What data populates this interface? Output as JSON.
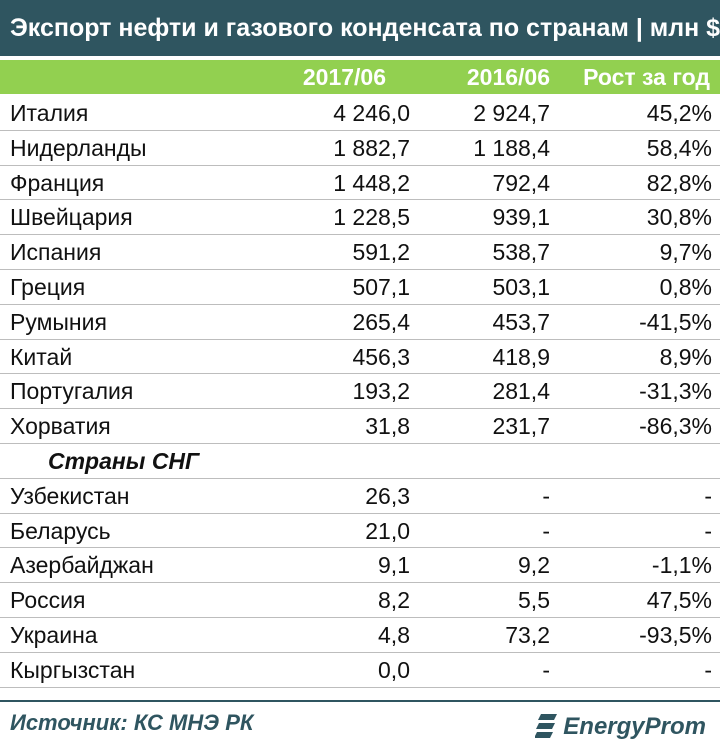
{
  "title": "Экспорт нефти и газового конденсата по странам | млн $",
  "header": {
    "col1": "2017/06",
    "col2": "2016/06",
    "col3": "Рост за год"
  },
  "rows": [
    {
      "country": "Италия",
      "v2017": "4 246,0",
      "v2016": "2 924,7",
      "growth": "45,2%"
    },
    {
      "country": "Нидерланды",
      "v2017": "1 882,7",
      "v2016": "1 188,4",
      "growth": "58,4%"
    },
    {
      "country": "Франция",
      "v2017": "1 448,2",
      "v2016": "792,4",
      "growth": "82,8%"
    },
    {
      "country": "Швейцария",
      "v2017": "1 228,5",
      "v2016": "939,1",
      "growth": "30,8%"
    },
    {
      "country": "Испания",
      "v2017": "591,2",
      "v2016": "538,7",
      "growth": "9,7%"
    },
    {
      "country": "Греция",
      "v2017": "507,1",
      "v2016": "503,1",
      "growth": "0,8%"
    },
    {
      "country": "Румыния",
      "v2017": "265,4",
      "v2016": "453,7",
      "growth": "-41,5%"
    },
    {
      "country": "Китай",
      "v2017": "456,3",
      "v2016": "418,9",
      "growth": "8,9%"
    },
    {
      "country": "Португалия",
      "v2017": "193,2",
      "v2016": "281,4",
      "growth": "-31,3%"
    },
    {
      "country": "Хорватия",
      "v2017": "31,8",
      "v2016": "231,7",
      "growth": "-86,3%"
    }
  ],
  "section_label": "Страны СНГ",
  "cis_rows": [
    {
      "country": "Узбекистан",
      "v2017": "26,3",
      "v2016": "-",
      "growth": "-"
    },
    {
      "country": "Беларусь",
      "v2017": "21,0",
      "v2016": "-",
      "growth": "-"
    },
    {
      "country": "Азербайджан",
      "v2017": "9,1",
      "v2016": "9,2",
      "growth": "-1,1%"
    },
    {
      "country": "Россия",
      "v2017": "8,2",
      "v2016": "5,5",
      "growth": "47,5%"
    },
    {
      "country": "Украина",
      "v2017": "4,8",
      "v2016": "73,2",
      "growth": "-93,5%"
    },
    {
      "country": "Кыргызстан",
      "v2017": "0,0",
      "v2016": "-",
      "growth": "-"
    }
  ],
  "footer": {
    "source": "Источник: КС МНЭ РК",
    "logo_text": "EnergyProm",
    "logo_icon": "energyprom-logo-icon"
  },
  "colors": {
    "title_bg": "#2f5560",
    "header_bg": "#92d050",
    "text": "#111111"
  }
}
